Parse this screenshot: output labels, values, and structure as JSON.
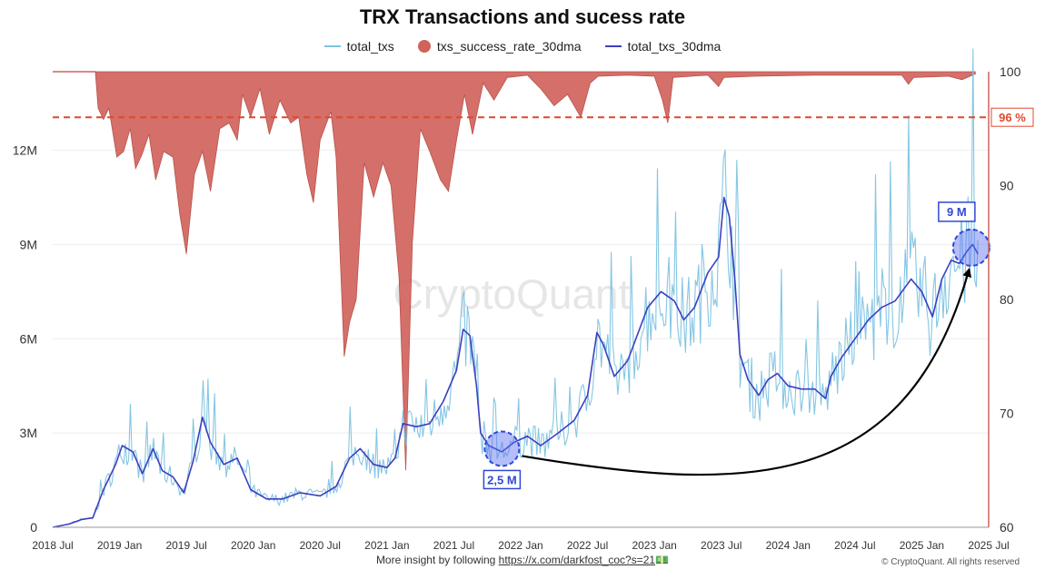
{
  "title": "TRX Transactions and sucess rate",
  "legend": [
    {
      "label": "total_txs",
      "color": "#7ec3e2",
      "kind": "line"
    },
    {
      "label": "txs_success_rate_30dma",
      "color": "#d0635c",
      "kind": "dot"
    },
    {
      "label": "total_txs_30dma",
      "color": "#3d3fbf",
      "kind": "line"
    }
  ],
  "footer": {
    "prefix": "More insight by following ",
    "link": "https://x.com/darkfost_coc?s=21",
    "emoji": "💵",
    "copyright": "© CryptoQuant. All rights reserved"
  },
  "watermark": "CryptoQuant",
  "chart_data": {
    "type": "line",
    "title": "TRX Transactions and sucess rate",
    "x_ticks": [
      "2018 Jul",
      "2019 Jan",
      "2019 Jul",
      "2020 Jan",
      "2020 Jul",
      "2021 Jan",
      "2021 Jul",
      "2022 Jan",
      "2022 Jul",
      "2023 Jan",
      "2023 Jul",
      "2024 Jan",
      "2024 Jul",
      "2025 Jan",
      "2025 Jul"
    ],
    "x_range": [
      2018.5,
      2025.5
    ],
    "y_left": {
      "range": [
        0,
        14500000
      ],
      "ticks": [
        0,
        3000000,
        6000000,
        9000000,
        12000000
      ],
      "tick_labels": [
        "0",
        "3M",
        "6M",
        "9M",
        "12M"
      ]
    },
    "y_right": {
      "range": [
        60,
        100
      ],
      "ticks": [
        60,
        70,
        80,
        90,
        100
      ],
      "tick_labels": [
        "60",
        "70",
        "80",
        "90",
        "100"
      ]
    },
    "reference_line": {
      "value": 96,
      "label": "96 %",
      "color": "#e2472c"
    },
    "colors": {
      "total_txs": "#7ec3e2",
      "success_rate": "#d0635c",
      "total_txs_30dma": "#3d3fbf",
      "annotation": "#2f47d6"
    },
    "series": [
      {
        "name": "total_txs_30dma",
        "axis": "left",
        "points": [
          [
            2018.5,
            0
          ],
          [
            2018.62,
            100000
          ],
          [
            2018.72,
            250000
          ],
          [
            2018.8,
            300000
          ],
          [
            2018.88,
            1200000
          ],
          [
            2018.97,
            2000000
          ],
          [
            2019.02,
            2600000
          ],
          [
            2019.1,
            2400000
          ],
          [
            2019.17,
            1700000
          ],
          [
            2019.25,
            2500000
          ],
          [
            2019.32,
            1800000
          ],
          [
            2019.4,
            1600000
          ],
          [
            2019.48,
            1100000
          ],
          [
            2019.55,
            2100000
          ],
          [
            2019.62,
            3500000
          ],
          [
            2019.68,
            2700000
          ],
          [
            2019.78,
            2000000
          ],
          [
            2019.88,
            2200000
          ],
          [
            2019.98,
            1200000
          ],
          [
            2020.1,
            900000
          ],
          [
            2020.22,
            900000
          ],
          [
            2020.35,
            1100000
          ],
          [
            2020.5,
            1000000
          ],
          [
            2020.62,
            1300000
          ],
          [
            2020.72,
            2200000
          ],
          [
            2020.8,
            2500000
          ],
          [
            2020.9,
            2000000
          ],
          [
            2021.0,
            1900000
          ],
          [
            2021.06,
            2200000
          ],
          [
            2021.12,
            3300000
          ],
          [
            2021.22,
            3200000
          ],
          [
            2021.32,
            3300000
          ],
          [
            2021.42,
            4000000
          ],
          [
            2021.52,
            5000000
          ],
          [
            2021.57,
            6300000
          ],
          [
            2021.62,
            6100000
          ],
          [
            2021.67,
            4500000
          ],
          [
            2021.7,
            3000000
          ],
          [
            2021.76,
            2600000
          ],
          [
            2021.86,
            2400000
          ],
          [
            2021.95,
            2700000
          ],
          [
            2022.05,
            2900000
          ],
          [
            2022.15,
            2600000
          ],
          [
            2022.28,
            3000000
          ],
          [
            2022.4,
            3400000
          ],
          [
            2022.5,
            4200000
          ],
          [
            2022.57,
            6200000
          ],
          [
            2022.62,
            5800000
          ],
          [
            2022.7,
            4800000
          ],
          [
            2022.8,
            5300000
          ],
          [
            2022.95,
            7000000
          ],
          [
            2023.05,
            7500000
          ],
          [
            2023.15,
            7200000
          ],
          [
            2023.22,
            6600000
          ],
          [
            2023.3,
            7000000
          ],
          [
            2023.4,
            8100000
          ],
          [
            2023.48,
            8600000
          ],
          [
            2023.52,
            10500000
          ],
          [
            2023.56,
            9900000
          ],
          [
            2023.6,
            8000000
          ],
          [
            2023.64,
            5500000
          ],
          [
            2023.7,
            4700000
          ],
          [
            2023.78,
            4200000
          ],
          [
            2023.85,
            4700000
          ],
          [
            2023.92,
            4900000
          ],
          [
            2024.0,
            4500000
          ],
          [
            2024.1,
            4400000
          ],
          [
            2024.2,
            4400000
          ],
          [
            2024.28,
            4100000
          ],
          [
            2024.32,
            4800000
          ],
          [
            2024.4,
            5400000
          ],
          [
            2024.5,
            6000000
          ],
          [
            2024.6,
            6600000
          ],
          [
            2024.7,
            7000000
          ],
          [
            2024.8,
            7200000
          ],
          [
            2024.92,
            7900000
          ],
          [
            2025.0,
            7500000
          ],
          [
            2025.08,
            6700000
          ],
          [
            2025.15,
            7900000
          ],
          [
            2025.22,
            8500000
          ],
          [
            2025.28,
            8400000
          ],
          [
            2025.34,
            8800000
          ],
          [
            2025.38,
            9000000
          ],
          [
            2025.42,
            8700000
          ]
        ]
      },
      {
        "name": "txs_success_rate_30dma",
        "axis": "right",
        "points": [
          [
            2018.82,
            99.8
          ],
          [
            2018.84,
            96.8
          ],
          [
            2018.88,
            95.8
          ],
          [
            2018.92,
            96.8
          ],
          [
            2018.98,
            92.5
          ],
          [
            2019.03,
            93.0
          ],
          [
            2019.08,
            95.0
          ],
          [
            2019.12,
            91.5
          ],
          [
            2019.17,
            92.8
          ],
          [
            2019.22,
            94.5
          ],
          [
            2019.27,
            90.5
          ],
          [
            2019.33,
            93.0
          ],
          [
            2019.4,
            92.5
          ],
          [
            2019.45,
            87.5
          ],
          [
            2019.5,
            84.0
          ],
          [
            2019.56,
            91.0
          ],
          [
            2019.62,
            93.0
          ],
          [
            2019.68,
            89.5
          ],
          [
            2019.75,
            95.0
          ],
          [
            2019.82,
            95.5
          ],
          [
            2019.88,
            94.0
          ],
          [
            2019.92,
            98.0
          ],
          [
            2019.98,
            96.0
          ],
          [
            2020.05,
            98.5
          ],
          [
            2020.12,
            94.5
          ],
          [
            2020.2,
            97.5
          ],
          [
            2020.28,
            95.5
          ],
          [
            2020.34,
            96.0
          ],
          [
            2020.4,
            91.0
          ],
          [
            2020.45,
            88.5
          ],
          [
            2020.5,
            94.0
          ],
          [
            2020.58,
            96.5
          ],
          [
            2020.62,
            92.5
          ],
          [
            2020.68,
            75.0
          ],
          [
            2020.72,
            78.0
          ],
          [
            2020.77,
            80.0
          ],
          [
            2020.83,
            92.0
          ],
          [
            2020.9,
            89.0
          ],
          [
            2020.97,
            92.0
          ],
          [
            2021.03,
            90.0
          ],
          [
            2021.09,
            82.0
          ],
          [
            2021.14,
            65.0
          ],
          [
            2021.19,
            85.0
          ],
          [
            2021.25,
            95.0
          ],
          [
            2021.32,
            93.0
          ],
          [
            2021.4,
            90.5
          ],
          [
            2021.46,
            89.5
          ],
          [
            2021.52,
            94.0
          ],
          [
            2021.58,
            98.0
          ],
          [
            2021.64,
            94.5
          ],
          [
            2021.72,
            99.0
          ],
          [
            2021.8,
            97.5
          ],
          [
            2021.9,
            99.5
          ],
          [
            2022.05,
            99.7
          ],
          [
            2022.15,
            98.5
          ],
          [
            2022.25,
            97.0
          ],
          [
            2022.35,
            98.0
          ],
          [
            2022.45,
            96.0
          ],
          [
            2022.52,
            99.0
          ],
          [
            2022.58,
            99.6
          ],
          [
            2022.8,
            99.7
          ],
          [
            2023.0,
            99.6
          ],
          [
            2023.06,
            97.5
          ],
          [
            2023.1,
            95.5
          ],
          [
            2023.14,
            99.5
          ],
          [
            2023.4,
            99.7
          ],
          [
            2023.48,
            98.7
          ],
          [
            2023.52,
            99.5
          ],
          [
            2023.75,
            99.6
          ],
          [
            2024.2,
            99.7
          ],
          [
            2024.85,
            99.7
          ],
          [
            2024.9,
            98.9
          ],
          [
            2024.94,
            99.5
          ],
          [
            2025.2,
            99.6
          ],
          [
            2025.3,
            99.3
          ],
          [
            2025.4,
            99.8
          ]
        ]
      }
    ],
    "annotations": [
      {
        "label": "2,5 M",
        "x": 2021.86,
        "y": 2500000
      },
      {
        "label": "9 M",
        "x": 2025.37,
        "y": 8900000
      }
    ]
  }
}
